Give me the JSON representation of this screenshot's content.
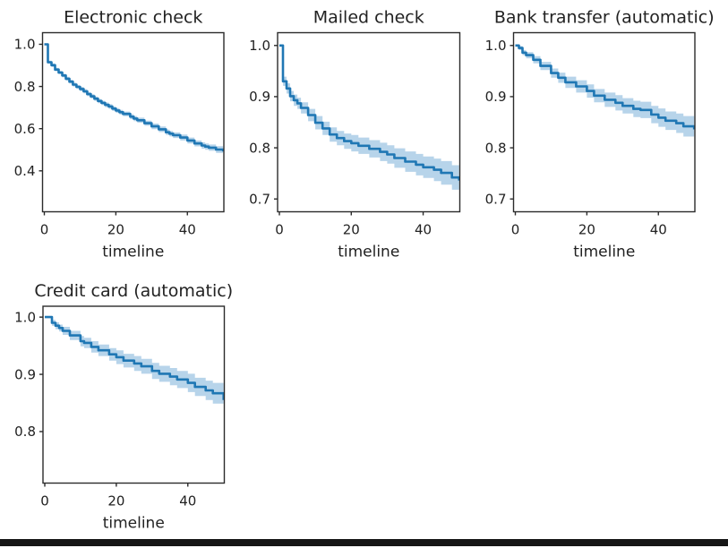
{
  "page": {
    "background": "#ffffff",
    "bottom_bar": {
      "color": "#161616"
    }
  },
  "chart_data": [
    {
      "id": "electronic-check",
      "type": "line",
      "chart_kind": "kaplan-meier-survival-curve",
      "title": "Electronic check",
      "xlabel": "timeline",
      "ylabel": "",
      "xlim": [
        -0.5,
        50.2
      ],
      "ylim": [
        0.206,
        1.055
      ],
      "x_tick_labels": [
        "0",
        "20",
        "40"
      ],
      "y_tick_labels": [
        "1.0",
        "0.8",
        "0.6",
        "0.4"
      ],
      "grid": false,
      "legend": "none",
      "line_color": "#1f77b4",
      "band_color": "#b7d4ea",
      "points_schema": [
        "timeline",
        "survival_probability",
        "ci_lower",
        "ci_upper"
      ],
      "points": [
        [
          0,
          1.0,
          1.0,
          1.0
        ],
        [
          1,
          0.915,
          0.908,
          0.922
        ],
        [
          2,
          0.901,
          0.893,
          0.909
        ],
        [
          3,
          0.88,
          0.872,
          0.888
        ],
        [
          4,
          0.866,
          0.858,
          0.874
        ],
        [
          5,
          0.852,
          0.843,
          0.861
        ],
        [
          6,
          0.837,
          0.828,
          0.846
        ],
        [
          7,
          0.823,
          0.814,
          0.832
        ],
        [
          8,
          0.809,
          0.8,
          0.818
        ],
        [
          9,
          0.798,
          0.789,
          0.807
        ],
        [
          10,
          0.788,
          0.778,
          0.798
        ],
        [
          11,
          0.777,
          0.767,
          0.787
        ],
        [
          12,
          0.764,
          0.754,
          0.774
        ],
        [
          13,
          0.753,
          0.743,
          0.763
        ],
        [
          14,
          0.742,
          0.732,
          0.752
        ],
        [
          15,
          0.731,
          0.721,
          0.741
        ],
        [
          16,
          0.722,
          0.712,
          0.732
        ],
        [
          17,
          0.713,
          0.702,
          0.724
        ],
        [
          18,
          0.705,
          0.694,
          0.716
        ],
        [
          19,
          0.695,
          0.684,
          0.706
        ],
        [
          20,
          0.686,
          0.675,
          0.697
        ],
        [
          21,
          0.678,
          0.667,
          0.689
        ],
        [
          22,
          0.67,
          0.659,
          0.681
        ],
        [
          24,
          0.657,
          0.645,
          0.669
        ],
        [
          25,
          0.648,
          0.636,
          0.66
        ],
        [
          26,
          0.64,
          0.628,
          0.652
        ],
        [
          28,
          0.626,
          0.614,
          0.638
        ],
        [
          30,
          0.611,
          0.598,
          0.624
        ],
        [
          32,
          0.597,
          0.584,
          0.61
        ],
        [
          34,
          0.583,
          0.57,
          0.596
        ],
        [
          35,
          0.576,
          0.563,
          0.589
        ],
        [
          36,
          0.569,
          0.556,
          0.582
        ],
        [
          38,
          0.558,
          0.544,
          0.572
        ],
        [
          40,
          0.544,
          0.53,
          0.558
        ],
        [
          42,
          0.53,
          0.516,
          0.544
        ],
        [
          44,
          0.52,
          0.505,
          0.535
        ],
        [
          45,
          0.515,
          0.5,
          0.53
        ],
        [
          46,
          0.51,
          0.495,
          0.525
        ],
        [
          48,
          0.501,
          0.485,
          0.517
        ],
        [
          50,
          0.492,
          0.476,
          0.508
        ]
      ]
    },
    {
      "id": "mailed-check",
      "type": "line",
      "chart_kind": "kaplan-meier-survival-curve",
      "title": "Mailed check",
      "xlabel": "timeline",
      "ylabel": "",
      "xlim": [
        -0.5,
        50.2
      ],
      "ylim": [
        0.675,
        1.025
      ],
      "x_tick_labels": [
        "0",
        "20",
        "40"
      ],
      "y_tick_labels": [
        "1.0",
        "0.9",
        "0.8",
        "0.7"
      ],
      "grid": false,
      "legend": "none",
      "line_color": "#1f77b4",
      "band_color": "#b7d4ea",
      "points_schema": [
        "timeline",
        "survival_probability",
        "ci_lower",
        "ci_upper"
      ],
      "points": [
        [
          0,
          1.0,
          1.0,
          1.0
        ],
        [
          1,
          0.93,
          0.921,
          0.939
        ],
        [
          2,
          0.916,
          0.906,
          0.926
        ],
        [
          3,
          0.901,
          0.891,
          0.911
        ],
        [
          4,
          0.893,
          0.882,
          0.904
        ],
        [
          5,
          0.887,
          0.876,
          0.898
        ],
        [
          6,
          0.878,
          0.867,
          0.889
        ],
        [
          8,
          0.864,
          0.852,
          0.876
        ],
        [
          10,
          0.849,
          0.836,
          0.862
        ],
        [
          12,
          0.838,
          0.825,
          0.851
        ],
        [
          14,
          0.826,
          0.812,
          0.84
        ],
        [
          16,
          0.819,
          0.805,
          0.833
        ],
        [
          18,
          0.813,
          0.798,
          0.828
        ],
        [
          20,
          0.809,
          0.793,
          0.825
        ],
        [
          22,
          0.804,
          0.788,
          0.82
        ],
        [
          25,
          0.798,
          0.781,
          0.815
        ],
        [
          28,
          0.792,
          0.774,
          0.81
        ],
        [
          30,
          0.787,
          0.769,
          0.805
        ],
        [
          32,
          0.78,
          0.761,
          0.799
        ],
        [
          35,
          0.773,
          0.753,
          0.793
        ],
        [
          38,
          0.767,
          0.746,
          0.788
        ],
        [
          40,
          0.762,
          0.741,
          0.783
        ],
        [
          43,
          0.757,
          0.735,
          0.779
        ],
        [
          45,
          0.751,
          0.728,
          0.774
        ],
        [
          48,
          0.742,
          0.718,
          0.766
        ],
        [
          50,
          0.736,
          0.711,
          0.761
        ]
      ]
    },
    {
      "id": "bank-transfer-automatic",
      "type": "line",
      "chart_kind": "kaplan-meier-survival-curve",
      "title": "Bank transfer (automatic)",
      "xlabel": "timeline",
      "ylabel": "",
      "xlim": [
        -0.5,
        50.2
      ],
      "ylim": [
        0.675,
        1.025
      ],
      "x_tick_labels": [
        "0",
        "20",
        "40"
      ],
      "y_tick_labels": [
        "1.0",
        "0.9",
        "0.8",
        "0.7"
      ],
      "grid": false,
      "legend": "none",
      "line_color": "#1f77b4",
      "band_color": "#b7d4ea",
      "points_schema": [
        "timeline",
        "survival_probability",
        "ci_lower",
        "ci_upper"
      ],
      "points": [
        [
          0,
          1.0,
          1.0,
          1.0
        ],
        [
          1,
          0.995,
          0.991,
          0.999
        ],
        [
          2,
          0.986,
          0.981,
          0.991
        ],
        [
          3,
          0.981,
          0.975,
          0.987
        ],
        [
          5,
          0.972,
          0.965,
          0.979
        ],
        [
          7,
          0.96,
          0.952,
          0.968
        ],
        [
          10,
          0.946,
          0.937,
          0.955
        ],
        [
          12,
          0.937,
          0.927,
          0.947
        ],
        [
          14,
          0.928,
          0.917,
          0.939
        ],
        [
          17,
          0.92,
          0.908,
          0.932
        ],
        [
          20,
          0.911,
          0.898,
          0.924
        ],
        [
          22,
          0.902,
          0.889,
          0.915
        ],
        [
          25,
          0.894,
          0.88,
          0.908
        ],
        [
          28,
          0.888,
          0.873,
          0.903
        ],
        [
          30,
          0.882,
          0.867,
          0.897
        ],
        [
          33,
          0.876,
          0.86,
          0.892
        ],
        [
          35,
          0.874,
          0.858,
          0.89
        ],
        [
          38,
          0.865,
          0.848,
          0.882
        ],
        [
          40,
          0.859,
          0.841,
          0.877
        ],
        [
          42,
          0.853,
          0.835,
          0.871
        ],
        [
          45,
          0.848,
          0.829,
          0.867
        ],
        [
          47,
          0.842,
          0.822,
          0.862
        ],
        [
          50,
          0.836,
          0.815,
          0.857
        ]
      ]
    },
    {
      "id": "credit-card-automatic",
      "type": "line",
      "chart_kind": "kaplan-meier-survival-curve",
      "title": "Credit card (automatic)",
      "xlabel": "timeline",
      "ylabel": "",
      "xlim": [
        -0.5,
        50.2
      ],
      "ylim": [
        0.71,
        1.019
      ],
      "x_tick_labels": [
        "0",
        "20",
        "40"
      ],
      "y_tick_labels": [
        "1.0",
        "0.9",
        "0.8"
      ],
      "grid": false,
      "legend": "none",
      "line_color": "#1f77b4",
      "band_color": "#b7d4ea",
      "points_schema": [
        "timeline",
        "survival_probability",
        "ci_lower",
        "ci_upper"
      ],
      "points": [
        [
          0,
          1.0,
          1.0,
          1.0
        ],
        [
          2,
          0.99,
          0.985,
          0.995
        ],
        [
          3,
          0.985,
          0.979,
          0.991
        ],
        [
          4,
          0.981,
          0.975,
          0.987
        ],
        [
          5,
          0.976,
          0.969,
          0.983
        ],
        [
          7,
          0.968,
          0.96,
          0.976
        ],
        [
          10,
          0.958,
          0.949,
          0.967
        ],
        [
          11,
          0.955,
          0.946,
          0.964
        ],
        [
          13,
          0.948,
          0.938,
          0.958
        ],
        [
          15,
          0.942,
          0.932,
          0.952
        ],
        [
          18,
          0.935,
          0.924,
          0.946
        ],
        [
          20,
          0.93,
          0.918,
          0.942
        ],
        [
          22,
          0.924,
          0.912,
          0.936
        ],
        [
          25,
          0.919,
          0.906,
          0.932
        ],
        [
          27,
          0.914,
          0.901,
          0.927
        ],
        [
          30,
          0.906,
          0.892,
          0.92
        ],
        [
          32,
          0.901,
          0.887,
          0.915
        ],
        [
          35,
          0.896,
          0.881,
          0.911
        ],
        [
          37,
          0.891,
          0.876,
          0.906
        ],
        [
          40,
          0.885,
          0.869,
          0.901
        ],
        [
          42,
          0.878,
          0.862,
          0.894
        ],
        [
          45,
          0.872,
          0.855,
          0.889
        ],
        [
          47,
          0.867,
          0.849,
          0.885
        ],
        [
          50,
          0.855,
          0.836,
          0.874
        ]
      ]
    }
  ]
}
